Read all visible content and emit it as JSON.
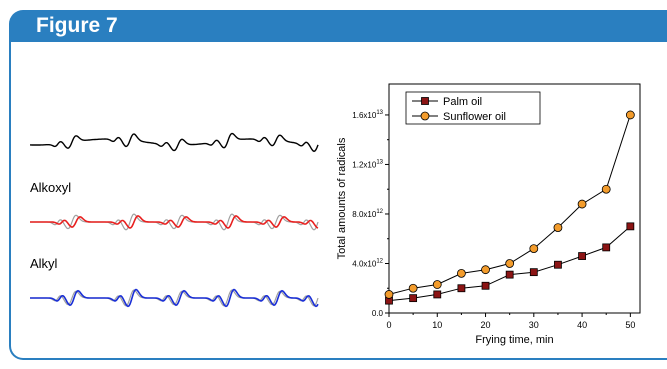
{
  "figure_title": "Figure 7",
  "spectra": {
    "labels": [
      "Alkoxyl",
      "Alkyl"
    ],
    "colors": {
      "experimental": "#000000",
      "alkoxyl": "#e8201f",
      "alkyl": "#1a2fd6",
      "overlay": "#a0a0a0"
    }
  },
  "chart_data": {
    "type": "line",
    "xlabel": "Frying time, min",
    "ylabel": "Total amounts of radicals",
    "x": [
      0,
      5,
      10,
      15,
      20,
      25,
      30,
      35,
      40,
      45,
      50
    ],
    "xlim": [
      0,
      52
    ],
    "ylim": [
      0,
      18500000000000.0
    ],
    "xticks": [
      "0",
      "10",
      "20",
      "30",
      "40",
      "50"
    ],
    "yticks": [
      {
        "base": "0.0",
        "exp": ""
      },
      {
        "base": "4.0x10",
        "exp": "12"
      },
      {
        "base": "8.0x10",
        "exp": "12"
      },
      {
        "base": "1.2x10",
        "exp": "13"
      },
      {
        "base": "1.6x10",
        "exp": "13"
      }
    ],
    "legend_position": "top-left",
    "series": [
      {
        "name": "Palm oil",
        "marker": "square",
        "color": "#8b1414",
        "values": [
          1000000000000.0,
          1200000000000.0,
          1500000000000.0,
          2000000000000.0,
          2200000000000.0,
          3100000000000.0,
          3300000000000.0,
          3900000000000.0,
          4600000000000.0,
          5300000000000.0,
          7000000000000.0
        ]
      },
      {
        "name": "Sunflower oil",
        "marker": "circle",
        "color": "#f39c2c",
        "values": [
          1500000000000.0,
          2000000000000.0,
          2300000000000.0,
          3200000000000.0,
          3500000000000.0,
          4000000000000.0,
          5200000000000.0,
          6900000000000.0,
          8800000000000.0,
          10000000000000.0,
          16000000000000.0
        ]
      }
    ]
  }
}
